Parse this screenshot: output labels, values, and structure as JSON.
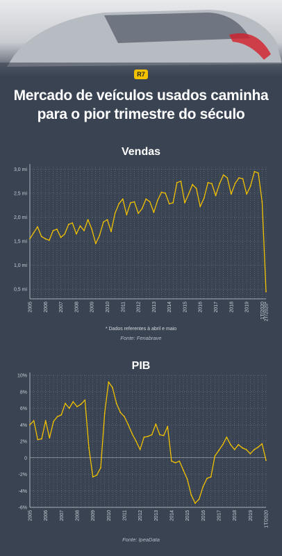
{
  "logo": "R7",
  "headline": [
    "Mercado de veículos usados caminha",
    "para o pior trimestre do século"
  ],
  "chart_data": [
    {
      "type": "line",
      "title": "Vendas",
      "series": [
        {
          "values": [
            1.55,
            1.68,
            1.8,
            1.6,
            1.55,
            1.52,
            1.72,
            1.75,
            1.58,
            1.65,
            1.85,
            1.88,
            1.65,
            1.82,
            1.72,
            1.95,
            1.75,
            1.45,
            1.62,
            1.9,
            1.95,
            1.7,
            2.08,
            2.28,
            2.38,
            2.05,
            2.3,
            2.32,
            2.08,
            2.18,
            2.38,
            2.32,
            2.1,
            2.35,
            2.52,
            2.5,
            2.28,
            2.3,
            2.72,
            2.75,
            2.3,
            2.48,
            2.68,
            2.6,
            2.22,
            2.4,
            2.72,
            2.7,
            2.45,
            2.7,
            2.88,
            2.82,
            2.48,
            2.7,
            2.82,
            2.8,
            2.48,
            2.65,
            2.95,
            2.92,
            2.32,
            0.45
          ]
        }
      ],
      "y_ticks": [
        "0,5 mi",
        "1,0 mi",
        "1,5 mi",
        "2,0 mi",
        "2,5 mi",
        "3,0 mi"
      ],
      "y_tick_values": [
        0.5,
        1.0,
        1.5,
        2.0,
        2.5,
        3.0
      ],
      "ylim": [
        0.3,
        3.05
      ],
      "x_labels": [
        "2005",
        "2006",
        "2007",
        "2008",
        "2009",
        "2010",
        "2011",
        "2012",
        "2013",
        "2014",
        "2015",
        "2016",
        "2017",
        "2018",
        "2019",
        "1T/2020",
        "2T/2020*"
      ],
      "x_label_index": [
        0,
        4,
        8,
        12,
        16,
        20,
        24,
        28,
        32,
        36,
        40,
        44,
        48,
        52,
        56,
        60,
        61
      ],
      "grid": true,
      "annotation": "* Dados referentes à abril e maio",
      "source": "Fonte: Fenabrave"
    },
    {
      "type": "line",
      "title": "PIB",
      "series": [
        {
          "values": [
            4.0,
            4.5,
            2.2,
            2.3,
            4.5,
            2.4,
            4.4,
            5.0,
            5.2,
            6.6,
            6.0,
            6.8,
            6.2,
            6.5,
            7.0,
            1.2,
            -2.3,
            -2.1,
            -1.2,
            5.4,
            9.2,
            8.5,
            6.6,
            5.5,
            5.0,
            4.0,
            2.9,
            2.0,
            1.0,
            2.5,
            2.6,
            2.8,
            4.1,
            2.8,
            2.7,
            3.8,
            -0.4,
            -0.6,
            -0.4,
            -1.5,
            -2.6,
            -4.5,
            -5.5,
            -5.0,
            -3.5,
            -2.5,
            -2.3,
            0.2,
            0.9,
            1.6,
            2.5,
            1.6,
            1.0,
            1.6,
            1.2,
            1.0,
            0.5,
            1.0,
            1.3,
            1.7,
            -0.3
          ]
        }
      ],
      "y_ticks": [
        "-6%",
        "-4%",
        "-2%",
        "0",
        "2%",
        "4%",
        "6%",
        "8%",
        "10%"
      ],
      "y_tick_values": [
        -6,
        -4,
        -2,
        0,
        2,
        4,
        6,
        8,
        10
      ],
      "ylim": [
        -6,
        10
      ],
      "x_labels": [
        "2005",
        "2006",
        "2007",
        "2008",
        "2009",
        "2010",
        "2011",
        "2012",
        "2013",
        "2014",
        "2015",
        "2016",
        "2017",
        "2018",
        "2019",
        "1T/2020"
      ],
      "x_label_index": [
        0,
        4,
        8,
        12,
        16,
        20,
        24,
        28,
        32,
        36,
        40,
        44,
        48,
        52,
        56,
        60
      ],
      "grid": true,
      "source": "Fonte: IpeaData"
    }
  ],
  "colors": {
    "background": "#3a4352",
    "line": "#f2c200",
    "grid": "#8a929e",
    "axis": "#c9ced6",
    "text": "#ffffff"
  }
}
